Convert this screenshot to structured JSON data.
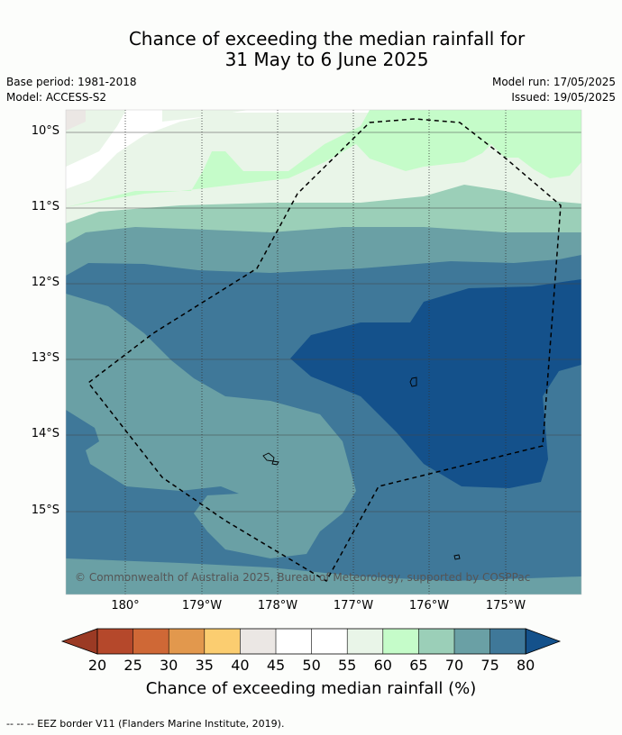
{
  "title": {
    "line1": "Chance of exceeding the median rainfall for",
    "line2": "31 May to 6 June 2025"
  },
  "meta": {
    "base_period": "Base period: 1981-2018",
    "model": "Model: ACCESS-S2",
    "model_run": "Model run: 17/05/2025",
    "issued": "Issued: 19/05/2025"
  },
  "map": {
    "lat_labels": [
      "10°S",
      "11°S",
      "12°S",
      "13°S",
      "14°S",
      "15°S"
    ],
    "lon_labels": [
      "180°",
      "179°W",
      "178°W",
      "177°W",
      "176°W",
      "175°W"
    ],
    "copyright": "© Commonwealth of Australia 2025, Bureau of Meteorology, supported by COSPPac"
  },
  "colorbar": {
    "ticks": [
      "20",
      "25",
      "30",
      "35",
      "40",
      "45",
      "50",
      "55",
      "60",
      "65",
      "70",
      "75",
      "80"
    ],
    "colors": {
      "below20": "#9b3a24",
      "20-25": "#b5482b",
      "25-30": "#cf6836",
      "30-35": "#e2984d",
      "35-40": "#fbcd70",
      "40-45": "#ebe7e4",
      "45-50": "#ffffff",
      "50-55": "#ffffff",
      "55-60": "#e9f5e8",
      "60-65": "#c5fcc9",
      "65-70": "#9bcfb8",
      "70-75": "#6aa0a5",
      "75-80": "#3f7899",
      "above80": "#14518b"
    },
    "label": "Chance of exceeding median rainfall (%)"
  },
  "footer": "--  --  -- EEZ border V11 (Flanders Marine Institute, 2019)."
}
